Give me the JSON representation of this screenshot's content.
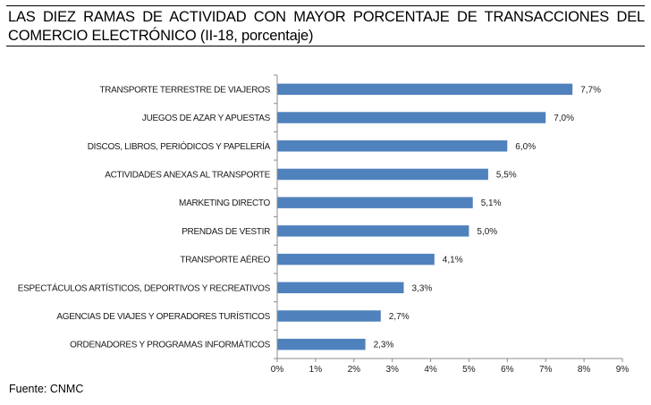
{
  "header": {
    "title": "LAS DIEZ RAMAS DE ACTIVIDAD CON MAYOR PORCENTAJE DE TRANSACCIONES DEL COMERCIO ELECTRÓNICO (II-18, porcentaje)"
  },
  "footer": {
    "source": "Fuente: CNMC"
  },
  "chart_data": {
    "type": "bar",
    "orientation": "horizontal",
    "title": "LAS DIEZ RAMAS DE ACTIVIDAD CON MAYOR PORCENTAJE DE TRANSACCIONES DEL COMERCIO ELECTRÓNICO (II-18, porcentaje)",
    "xlabel": "",
    "ylabel": "",
    "categories": [
      "TRANSPORTE TERRESTRE DE VIAJEROS",
      "JUEGOS DE AZAR Y APUESTAS",
      "DISCOS, LIBROS, PERIÓDICOS Y PAPELERÍA",
      "ACTIVIDADES ANEXAS AL TRANSPORTE",
      "MARKETING DIRECTO",
      "PRENDAS DE VESTIR",
      "TRANSPORTE AÉREO",
      "ESPECTÁCULOS ARTÍSTICOS, DEPORTIVOS Y RECREATIVOS",
      "AGENCIAS DE VIAJES Y OPERADORES TURÍSTICOS",
      "ORDENADORES Y PROGRAMAS INFORMÁTICOS"
    ],
    "values": [
      7.7,
      7.0,
      6.0,
      5.5,
      5.1,
      5.0,
      4.1,
      3.3,
      2.7,
      2.3
    ],
    "value_labels": [
      "7,7%",
      "7,0%",
      "6,0%",
      "5,5%",
      "5,1%",
      "5,0%",
      "4,1%",
      "3,3%",
      "2,7%",
      "2,3%"
    ],
    "xlim": [
      0,
      9
    ],
    "x_ticks": [
      0,
      1,
      2,
      3,
      4,
      5,
      6,
      7,
      8,
      9
    ],
    "x_tick_labels": [
      "0%",
      "1%",
      "2%",
      "3%",
      "4%",
      "5%",
      "6%",
      "7%",
      "8%",
      "9%"
    ],
    "bar_color": "#4F81BD",
    "grid": false,
    "legend": "none",
    "source": "Fuente: CNMC"
  }
}
